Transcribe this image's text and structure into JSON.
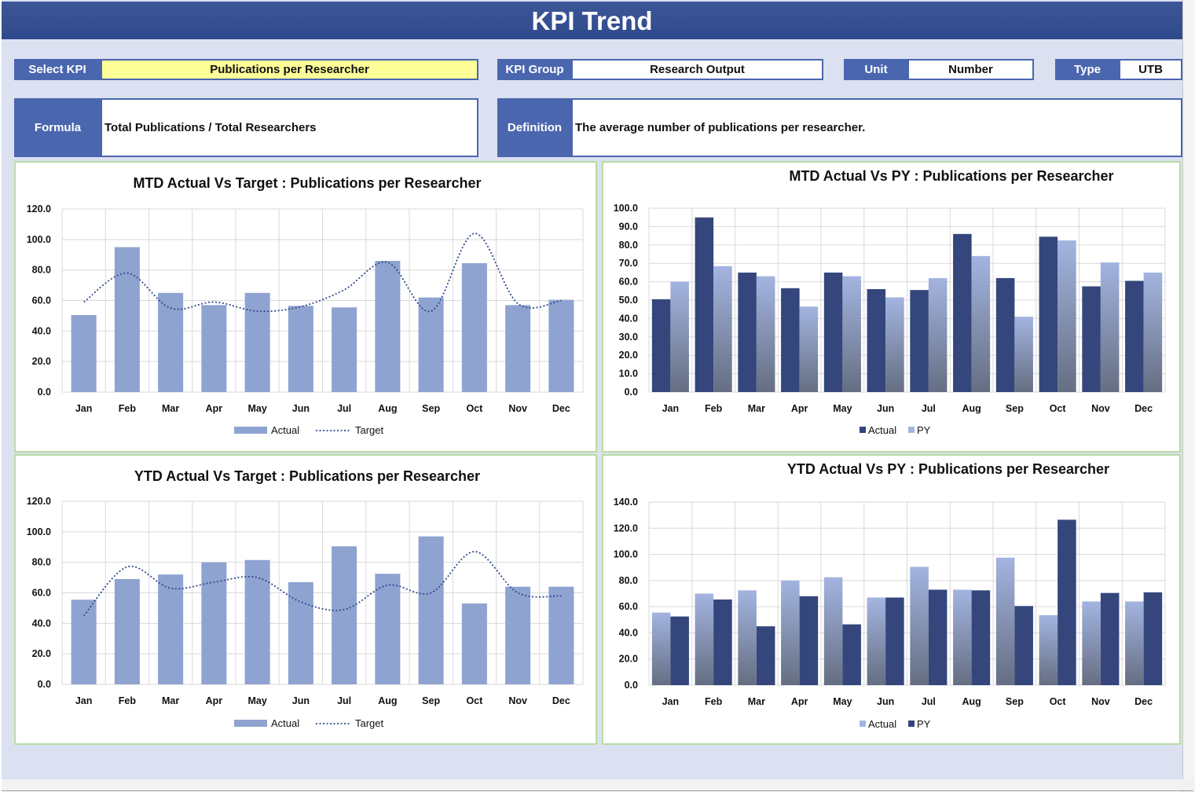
{
  "header": {
    "title": "KPI Trend"
  },
  "filters": {
    "select_kpi_label": "Select KPI",
    "select_kpi_value": "Publications per Researcher",
    "kpi_group_label": "KPI Group",
    "kpi_group_value": "Research Output",
    "unit_label": "Unit",
    "unit_value": "Number",
    "type_label": "Type",
    "type_value": "UTB"
  },
  "info": {
    "formula_label": "Formula",
    "formula_value": "Total Publications / Total Researchers",
    "definition_label": "Definition",
    "definition_value": "The average number of publications per researcher."
  },
  "colors": {
    "header": "#2f4a8c",
    "label_bg": "#4a66ae",
    "page_bg": "#dbe1f1",
    "actual_bar": "#8fa3d1",
    "target_line": "#2f4a8c",
    "dark_bar": "#34467c",
    "light_bar": "#a3b4e0",
    "panel_border": "#b9dca4"
  },
  "chart_data": [
    {
      "type": "bar",
      "title": "MTD Actual Vs Target : Publications per Researcher",
      "categories": [
        "Jan",
        "Feb",
        "Mar",
        "Apr",
        "May",
        "Jun",
        "Jul",
        "Aug",
        "Sep",
        "Oct",
        "Nov",
        "Dec"
      ],
      "series": [
        {
          "name": "Actual",
          "kind": "bar",
          "values": [
            50.5,
            95.0,
            65.0,
            57.0,
            65.0,
            56.5,
            55.5,
            86.0,
            62.0,
            84.5,
            57.0,
            60.5
          ]
        },
        {
          "name": "Target",
          "kind": "line",
          "values": [
            59,
            78,
            55,
            59,
            53,
            56,
            67,
            85,
            53,
            104,
            58,
            60
          ]
        }
      ],
      "ylim": [
        0,
        120
      ],
      "yticks": [
        "0.0",
        "20.0",
        "40.0",
        "60.0",
        "80.0",
        "100.0",
        "120.0"
      ],
      "legend": "bottom",
      "grid": true
    },
    {
      "type": "bar",
      "title": "MTD Actual Vs PY : Publications per Researcher",
      "categories": [
        "Jan",
        "Feb",
        "Mar",
        "Apr",
        "May",
        "Jun",
        "Jul",
        "Aug",
        "Sep",
        "Oct",
        "Nov",
        "Dec"
      ],
      "series": [
        {
          "name": "Actual",
          "values": [
            50.5,
            95.0,
            65.0,
            56.5,
            65.0,
            56.0,
            55.5,
            86.0,
            62.0,
            84.5,
            57.5,
            60.5
          ]
        },
        {
          "name": "PY",
          "values": [
            60.0,
            68.5,
            63.0,
            46.5,
            63.0,
            51.5,
            62.0,
            74.0,
            41.0,
            82.5,
            70.5,
            65.0
          ]
        }
      ],
      "ylim": [
        0,
        100
      ],
      "yticks": [
        "0.0",
        "10.0",
        "20.0",
        "30.0",
        "40.0",
        "50.0",
        "60.0",
        "70.0",
        "80.0",
        "90.0",
        "100.0"
      ],
      "legend": "bottom",
      "grid": true
    },
    {
      "type": "bar",
      "title": "YTD Actual Vs Target : Publications per Researcher",
      "categories": [
        "Jan",
        "Feb",
        "Mar",
        "Apr",
        "May",
        "Jun",
        "Jul",
        "Aug",
        "Sep",
        "Oct",
        "Nov",
        "Dec"
      ],
      "series": [
        {
          "name": "Actual",
          "kind": "bar",
          "values": [
            55.5,
            69.0,
            72.0,
            80.0,
            81.5,
            67.0,
            90.5,
            72.5,
            97.0,
            53.0,
            64.0,
            64.0
          ]
        },
        {
          "name": "Target",
          "kind": "line",
          "values": [
            45,
            77,
            63,
            67,
            70,
            54,
            49,
            65,
            60,
            87,
            60,
            58
          ]
        }
      ],
      "ylim": [
        0,
        120
      ],
      "yticks": [
        "0.0",
        "20.0",
        "40.0",
        "60.0",
        "80.0",
        "100.0",
        "120.0"
      ],
      "legend": "bottom",
      "grid": true
    },
    {
      "type": "bar",
      "title": "YTD Actual Vs PY : Publications per Researcher",
      "categories": [
        "Jan",
        "Feb",
        "Mar",
        "Apr",
        "May",
        "Jun",
        "Jul",
        "Aug",
        "Sep",
        "Oct",
        "Nov",
        "Dec"
      ],
      "series": [
        {
          "name": "Actual",
          "values": [
            55.5,
            70.0,
            72.5,
            80.0,
            82.5,
            67.0,
            90.5,
            73.0,
            97.5,
            53.5,
            64.0,
            64.0
          ]
        },
        {
          "name": "PY",
          "values": [
            52.5,
            65.5,
            45.0,
            68.0,
            46.5,
            67.0,
            73.0,
            72.5,
            60.5,
            126.5,
            70.5,
            71.0
          ]
        }
      ],
      "ylim": [
        0,
        140
      ],
      "yticks": [
        "0.0",
        "20.0",
        "40.0",
        "60.0",
        "80.0",
        "100.0",
        "120.0",
        "140.0"
      ],
      "legend": "bottom",
      "grid": true
    }
  ]
}
